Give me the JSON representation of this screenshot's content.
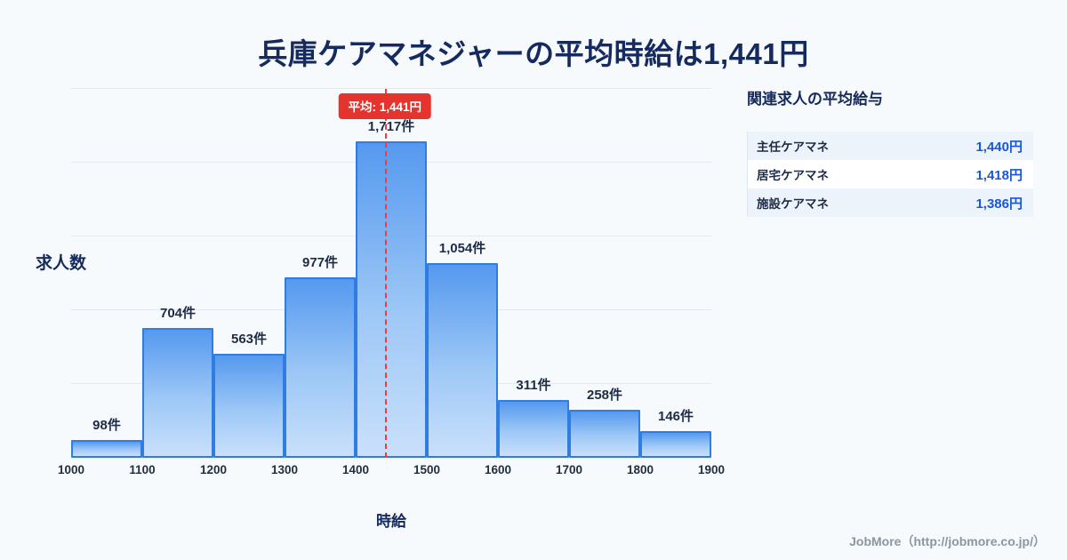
{
  "title": "兵庫ケアマネジャーの平均時給は1,441円",
  "colors": {
    "background": "#f7fafd",
    "title_text": "#152a5e",
    "bar_fill_top": "#5599ef",
    "bar_fill_bottom": "#c9e0fb",
    "bar_border": "#2f7de0",
    "average_line": "#ee3d3d",
    "average_badge_bg": "#e5332e",
    "side_value_text": "#1a56db"
  },
  "chart_data": {
    "type": "bar",
    "title": "兵庫ケアマネジャーの平均時給は1,441円",
    "categories": [
      "1000-1100",
      "1100-1200",
      "1200-1300",
      "1300-1400",
      "1400-1500",
      "1500-1600",
      "1600-1700",
      "1700-1800",
      "1800-1900"
    ],
    "values": [
      98,
      704,
      563,
      977,
      1717,
      1054,
      311,
      258,
      146
    ],
    "bar_labels": [
      "98件",
      "704件",
      "563件",
      "977件",
      "1,717件",
      "1,054件",
      "311件",
      "258件",
      "146件"
    ],
    "x_tick_labels": [
      "1000",
      "1100",
      "1200",
      "1300",
      "1400",
      "1500",
      "1600",
      "1700",
      "1800",
      "1900"
    ],
    "x_range": [
      1000,
      1900
    ],
    "xlabel": "時給",
    "ylabel": "求人数",
    "ylim": [
      0,
      2000
    ],
    "grid_step": 400,
    "grid": true,
    "legend": false,
    "average": 1441,
    "average_label": "平均: 1,441円"
  },
  "side_panel": {
    "heading": "関連求人の平均給与",
    "rows": [
      {
        "label": "主任ケアマネ",
        "value": "1,440円"
      },
      {
        "label": "居宅ケアマネ",
        "value": "1,418円"
      },
      {
        "label": "施設ケアマネ",
        "value": "1,386円"
      }
    ]
  },
  "footer": {
    "credit": "JobMore（http://jobmore.co.jp/）"
  }
}
